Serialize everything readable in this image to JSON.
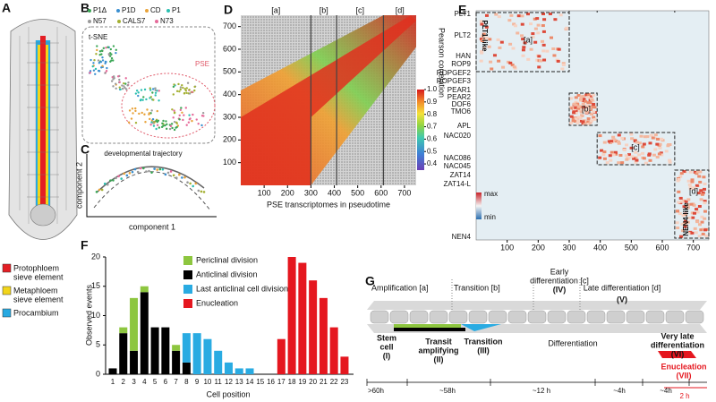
{
  "panel_labels": [
    "A",
    "B",
    "C",
    "D",
    "E",
    "F",
    "G"
  ],
  "panel_a": {
    "legend": [
      {
        "lines": [
          "Protophloem",
          "sieve element"
        ],
        "color": "#e31e24"
      },
      {
        "lines": [
          "Metaphloem",
          "sieve element"
        ],
        "color": "#f2d51a"
      },
      {
        "lines": [
          "Procambium"
        ],
        "color": "#27a9e1"
      }
    ]
  },
  "panel_b": {
    "legend": [
      {
        "name": "P1Δ",
        "color": "#3aa655"
      },
      {
        "name": "P1D",
        "color": "#3a8fd0"
      },
      {
        "name": "CD",
        "color": "#e8a33a"
      },
      {
        "name": "P1",
        "color": "#2bbfb0"
      },
      {
        "name": "N57",
        "color": "#9a9a9a"
      },
      {
        "name": "CALS7",
        "color": "#a4b032"
      },
      {
        "name": "N73",
        "color": "#e56a9a"
      }
    ],
    "method": "t-SNE",
    "region": "PSE"
  },
  "panel_c": {
    "title": "developmental trajectory",
    "xlabel": "component 1",
    "ylabel": "component 2"
  },
  "chart_data": [
    {
      "type": "heatmap",
      "xlabel": "PSE transcriptomes in pseudotime",
      "xlim": [
        0,
        750
      ],
      "ylim": [
        0,
        750
      ],
      "xticks": [
        100,
        200,
        300,
        400,
        500,
        600,
        700
      ],
      "yticks": [
        100,
        200,
        300,
        400,
        500,
        600,
        700
      ],
      "sections": [
        "[a]",
        "[b]",
        "[c]",
        "[d]"
      ],
      "boundaries": [
        300,
        410,
        610
      ],
      "colorbar": {
        "title": "Pearson correlation",
        "lim": [
          0.35,
          1.0
        ],
        "ticks": [
          {
            "value": 1.0,
            "label": "1.0"
          },
          0.9,
          0.8,
          0.7,
          0.6,
          0.5,
          0.4
        ]
      }
    },
    {
      "type": "heatmap",
      "xlim": [
        0,
        750
      ],
      "xticks": [
        100,
        200,
        300,
        400,
        500,
        600,
        700
      ],
      "genes": [
        "PLT1",
        "PLT2",
        "HAN",
        "ROP9",
        "ROPGEF2",
        "ROPGEF3",
        "PEAR1",
        "PEAR2",
        "DOF6",
        "TMO6",
        "APL",
        "NAC020",
        "NAC086",
        "NAC045",
        "ZAT14",
        "ZAT14-L",
        "NEN4"
      ],
      "rotated_labels": [
        "PLT1-like",
        "NEN4-like"
      ],
      "sections": [
        "[a]",
        "[b]",
        "[c]",
        "[d]"
      ],
      "boundaries": [
        300,
        390,
        640
      ],
      "colorbar_labels": [
        "max",
        "min"
      ]
    },
    {
      "type": "stacked_bar",
      "xlabel": "Cell position",
      "ylabel": "Observed events",
      "categories": [
        "1",
        "2",
        "3",
        "4",
        "5",
        "6",
        "7",
        "8",
        "9",
        "10",
        "11",
        "12",
        "13",
        "14",
        "15",
        "16",
        "17",
        "18",
        "19",
        "20",
        "21",
        "22",
        "23"
      ],
      "ylim": [
        0,
        20
      ],
      "yticks": [
        0,
        5,
        10,
        15,
        20
      ],
      "series": [
        {
          "name": "Periclinal division",
          "color": "#8dc63f",
          "values": [
            0,
            1,
            9,
            1,
            0,
            0,
            1,
            0,
            0,
            0,
            0,
            0,
            0,
            0,
            0,
            0,
            0,
            0,
            0,
            0,
            0,
            0,
            0
          ]
        },
        {
          "name": "Anticlinal division",
          "color": "#000000",
          "values": [
            1,
            7,
            4,
            14,
            8,
            8,
            4,
            2,
            0,
            0,
            0,
            0,
            0,
            0,
            0,
            0,
            0,
            0,
            0,
            0,
            0,
            0,
            0
          ]
        },
        {
          "name": "Last anticlinal cell division",
          "color": "#29abe2",
          "values": [
            0,
            0,
            0,
            0,
            0,
            0,
            0,
            5,
            7,
            6,
            4,
            2,
            1,
            1,
            0,
            0,
            0,
            0,
            0,
            0,
            0,
            0,
            0
          ]
        },
        {
          "name": "Enucleation",
          "color": "#e5171f",
          "values": [
            0,
            0,
            0,
            0,
            0,
            0,
            0,
            0,
            0,
            0,
            0,
            0,
            0,
            0,
            0,
            0,
            6,
            20,
            19,
            16,
            13,
            8,
            3
          ]
        }
      ]
    }
  ],
  "panel_g": {
    "stages_top": [
      {
        "lines": [
          "Amplification [a]"
        ]
      },
      {
        "lines": [
          "Transition [b]"
        ]
      },
      {
        "lines": [
          "Early",
          "differentiation [c]",
          "(IV)"
        ]
      },
      {
        "lines": [
          "Late differentiation [d]",
          "(V)"
        ]
      }
    ],
    "stages_bottom": [
      {
        "lines": [
          "Stem",
          "cell",
          "(I)"
        ]
      },
      {
        "lines": [
          "Transit",
          "amplifying",
          "(II)"
        ]
      },
      {
        "lines": [
          "Transition",
          "(III)"
        ]
      },
      {
        "lines": [
          "Differentiation"
        ]
      },
      {
        "lines": [
          "Very late",
          "differentiation",
          "(VI)"
        ]
      },
      {
        "lines": [
          "Enucleation",
          "(VII)"
        ]
      }
    ],
    "durations": [
      ">60h",
      "~58h",
      "~12 h",
      "~4h",
      "~4h"
    ],
    "enucleation_duration": "2 h"
  }
}
